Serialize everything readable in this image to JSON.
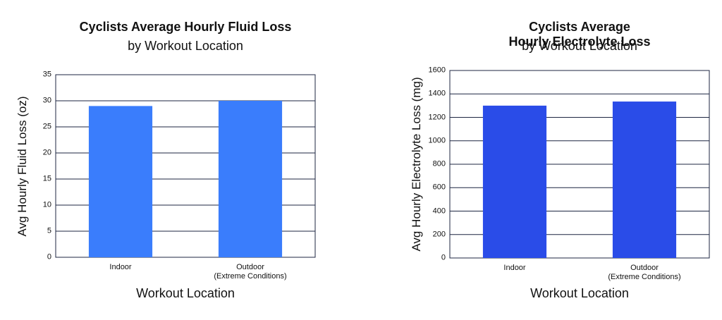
{
  "chart_data": [
    {
      "type": "bar",
      "title": "Cyclists Average Hourly Fluid Loss",
      "subtitle": "by Workout Location",
      "x_label": "Workout Location",
      "y_label": "Avg Hourly Fluid Loss (oz)",
      "categories": [
        "Indoor",
        "Outdoor\n(Extreme Conditions)"
      ],
      "values": [
        29,
        30
      ],
      "color": "#3a7dfc",
      "ylim": [
        0,
        35
      ],
      "yticks": [
        0,
        5,
        10,
        15,
        20,
        25,
        30,
        35
      ],
      "grid": true
    },
    {
      "type": "bar",
      "title": "Cyclists Average Hourly Electrolyte Loss",
      "subtitle": "by Workout Location",
      "x_label": "Workout Location",
      "y_label": "Avg Hourly Electrolyte Loss (mg)",
      "categories": [
        "Indoor",
        "Outdoor\n(Extreme Conditions)"
      ],
      "values": [
        1300,
        1335
      ],
      "color": "#2a4ce8",
      "ylim": [
        0,
        1600
      ],
      "yticks": [
        0,
        200,
        400,
        600,
        800,
        1000,
        1200,
        1400,
        1600
      ],
      "grid": true
    }
  ]
}
